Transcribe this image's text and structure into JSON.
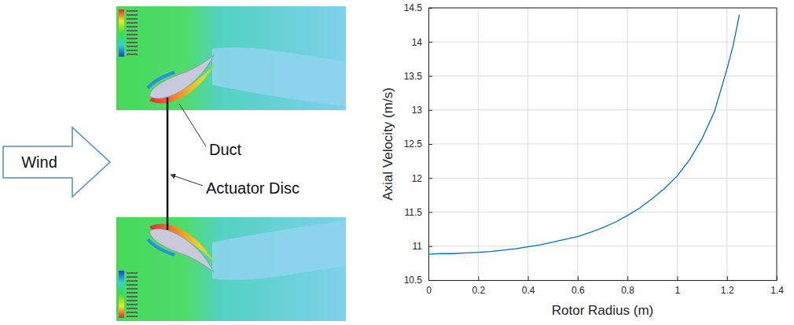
{
  "diagram": {
    "wind": "Wind",
    "duct": "Duct",
    "actuator_disc": "Actuator Disc"
  },
  "chart_data": {
    "type": "line",
    "x_label": "Rotor Radius (m)",
    "y_label": "Axial Velocity (m/s)",
    "x": [
      0,
      0.05,
      0.1,
      0.15,
      0.2,
      0.25,
      0.3,
      0.35,
      0.4,
      0.45,
      0.5,
      0.55,
      0.6,
      0.65,
      0.7,
      0.75,
      0.8,
      0.85,
      0.9,
      0.95,
      1.0,
      1.05,
      1.1,
      1.15,
      1.2,
      1.225,
      1.25
    ],
    "values": [
      10.88,
      10.89,
      10.89,
      10.9,
      10.91,
      10.92,
      10.94,
      10.96,
      10.99,
      11.02,
      11.06,
      11.1,
      11.14,
      11.2,
      11.27,
      11.35,
      11.45,
      11.56,
      11.7,
      11.85,
      12.03,
      12.27,
      12.58,
      12.98,
      13.6,
      13.95,
      14.4
    ],
    "color": "#0072bd",
    "xlim": [
      0,
      1.4
    ],
    "xticks": [
      0,
      0.2,
      0.4,
      0.6,
      0.8,
      1,
      1.2,
      1.4
    ],
    "ylim": [
      10.5,
      14.5
    ],
    "yticks": [
      10.5,
      11,
      11.5,
      12,
      12.5,
      13,
      13.5,
      14,
      14.5
    ],
    "grid": true
  }
}
